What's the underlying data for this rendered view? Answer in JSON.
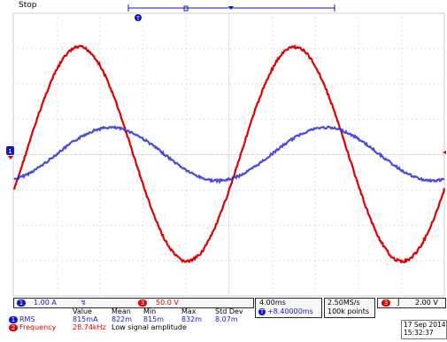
{
  "status": "Stop",
  "markers": {
    "ch1_ground": "1",
    "trigger_pos": "T",
    "trigger_level": "T"
  },
  "channels": {
    "ch1": {
      "id": "1",
      "scale": "1.00 A",
      "coupling": "↯",
      "color": "#1414c8"
    },
    "ch3": {
      "id": "3",
      "scale": "50.0 V",
      "color": "#e00000"
    }
  },
  "timebase": {
    "scale": "4.00ms",
    "delay": "+8.40000ms",
    "delay_icon": "T"
  },
  "acquisition": {
    "rate": "2.50MS/s",
    "points": "100k points"
  },
  "trigger": {
    "source": "3",
    "slope_icon": "rising-edge-icon",
    "level": "2.00 V"
  },
  "measurements": {
    "headers": [
      "Value",
      "Mean",
      "Min",
      "Max",
      "Std Dev"
    ],
    "rows": [
      {
        "ch": "1",
        "name": "RMS",
        "value": "815mA",
        "mean": "822m",
        "min": "815m",
        "max": "832m",
        "std": "8.07m"
      },
      {
        "ch": "2",
        "name": "Frequency",
        "value": "28.74kHz",
        "note": "Low signal amplitude"
      }
    ]
  },
  "datetime": {
    "date": "17 Sep  2014",
    "time": "15:32:37"
  }
}
